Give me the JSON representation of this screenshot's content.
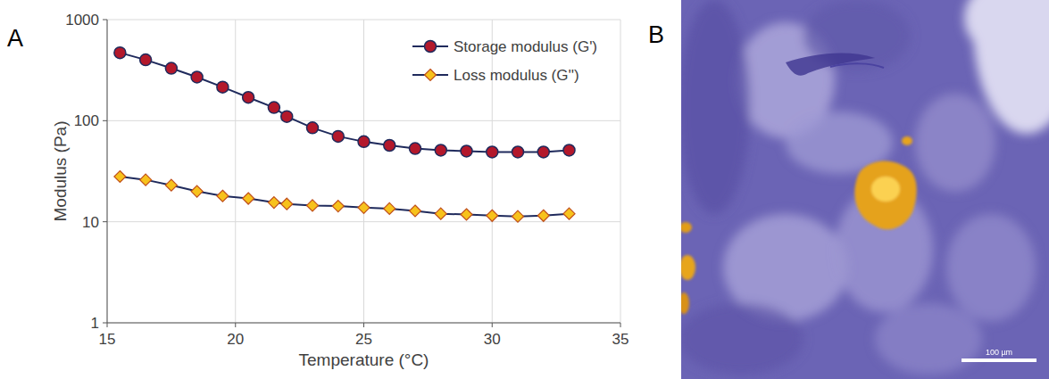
{
  "panel_labels": [
    "A",
    "B"
  ],
  "chart_data": {
    "type": "line",
    "x_label": "Temperature (°C)",
    "y_label": "Modulus (Pa)",
    "x": [
      15.5,
      16.5,
      17.5,
      18.5,
      19.5,
      20.5,
      21.5,
      22,
      23,
      24,
      25,
      26,
      27,
      28,
      29,
      30,
      31,
      32,
      33
    ],
    "series": [
      {
        "name": "Storage modulus (G')",
        "color": "#b3182b",
        "marker": "circle",
        "line_style": "solid",
        "values": [
          470,
          400,
          330,
          270,
          215,
          170,
          135,
          110,
          85,
          70,
          62,
          57,
          53,
          51,
          50,
          49,
          49,
          49,
          51
        ]
      },
      {
        "name": "Loss modulus (G'')",
        "color": "#f7c21c",
        "marker": "diamond",
        "line_style": "solid",
        "values": [
          28,
          26,
          23,
          20,
          18,
          17,
          15.5,
          15,
          14.5,
          14.3,
          13.8,
          13.5,
          12.8,
          12,
          11.8,
          11.5,
          11.3,
          11.5,
          12
        ]
      }
    ],
    "xlim": [
      15,
      35
    ],
    "xticks": [
      15,
      20,
      25,
      30,
      35
    ],
    "ylim": [
      1,
      1000
    ],
    "yticks": [
      1,
      10,
      100,
      1000
    ],
    "log": "y",
    "grid": true,
    "legend": "upper right"
  },
  "image": {
    "scale_bar_label": "100 µm"
  }
}
